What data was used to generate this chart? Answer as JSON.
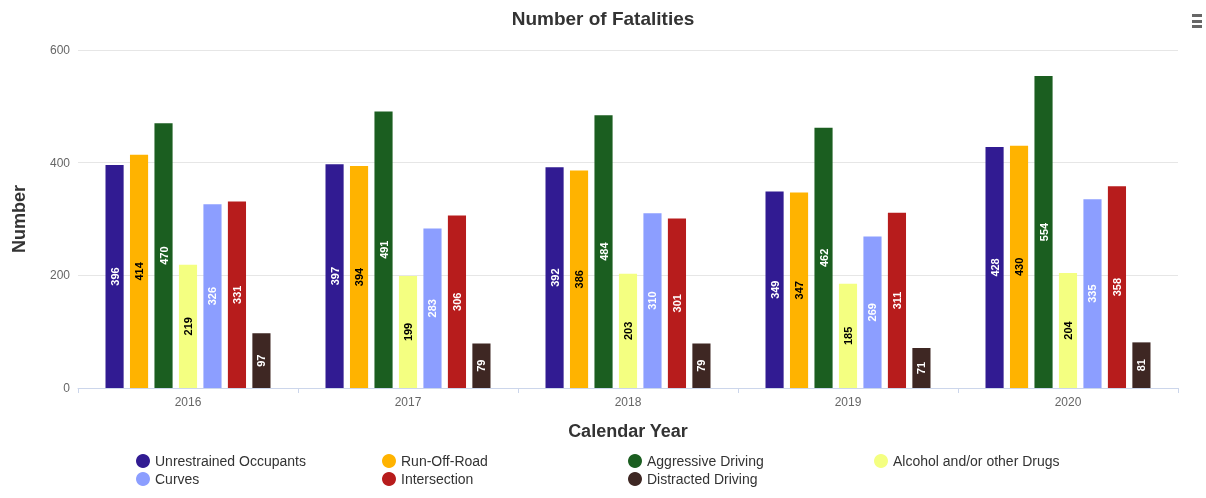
{
  "chart_data": {
    "type": "bar",
    "title": "Number of Fatalities",
    "xlabel": "Calendar Year",
    "ylabel": "Number",
    "categories": [
      "2016",
      "2017",
      "2018",
      "2019",
      "2020"
    ],
    "series": [
      {
        "name": "Unrestrained Occupants",
        "color": "#311b92",
        "values": [
          396,
          397,
          392,
          349,
          428
        ]
      },
      {
        "name": "Run-Off-Road",
        "color": "#ffb300",
        "values": [
          414,
          394,
          386,
          347,
          430
        ]
      },
      {
        "name": "Aggressive Driving",
        "color": "#1b5e20",
        "values": [
          470,
          491,
          484,
          462,
          554
        ]
      },
      {
        "name": "Alcohol and/or other Drugs",
        "color": "#f4ff81",
        "values": [
          219,
          199,
          203,
          185,
          204
        ]
      },
      {
        "name": "Curves",
        "color": "#8c9eff",
        "values": [
          326,
          283,
          310,
          269,
          335
        ]
      },
      {
        "name": "Intersection",
        "color": "#b71c1c",
        "values": [
          331,
          306,
          301,
          311,
          358
        ]
      },
      {
        "name": "Distracted Driving",
        "color": "#3e2723",
        "values": [
          97,
          79,
          79,
          71,
          81
        ]
      }
    ],
    "ylim": [
      0,
      600
    ],
    "yticks": [
      0,
      200,
      400,
      600
    ],
    "grid": "y",
    "legend": "bottom",
    "data_labels": true
  }
}
